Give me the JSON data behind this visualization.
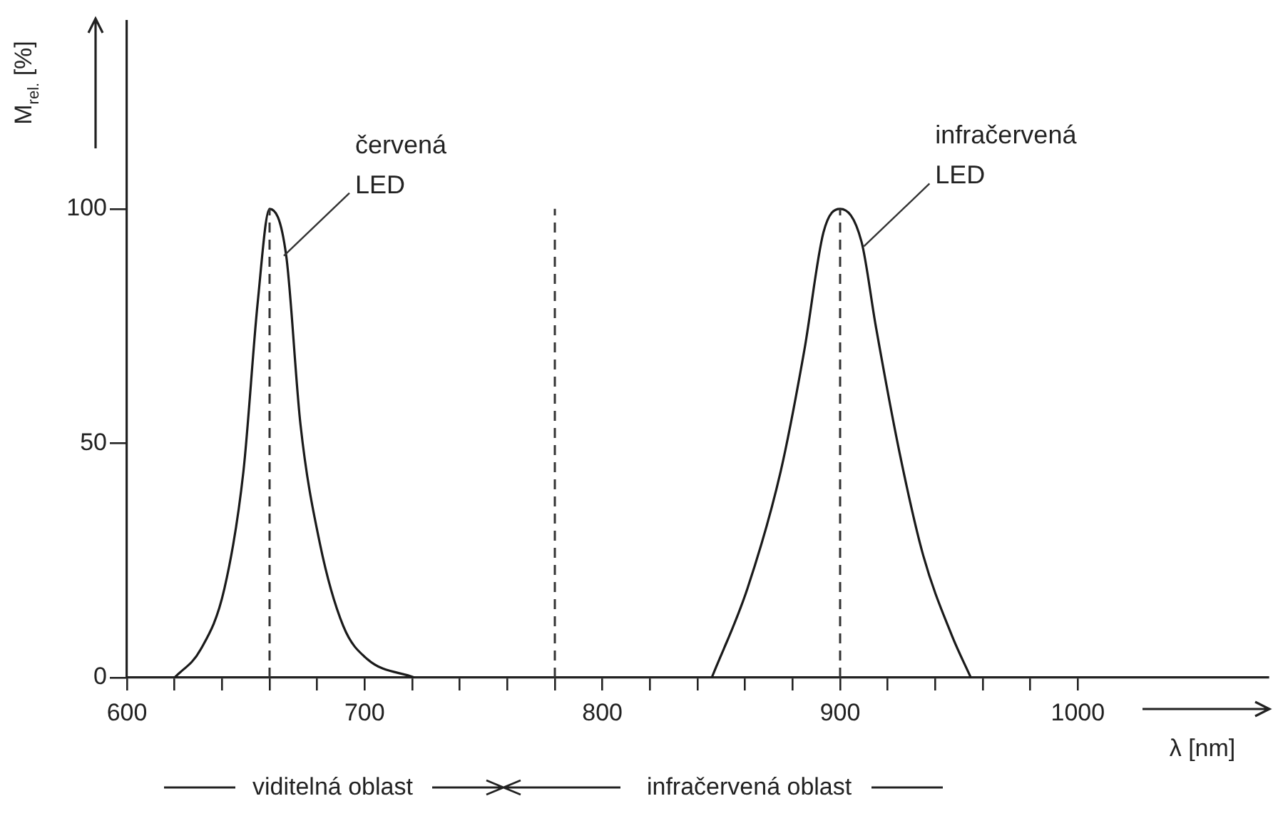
{
  "chart_data": {
    "type": "line",
    "ylabel": "M$_{rel.}$ [%]",
    "xlabel": "λ [nm]",
    "xlim": [
      600,
      1080
    ],
    "ylim": [
      0,
      140
    ],
    "xticks": [
      600,
      {
        "value": 620,
        "label": null
      },
      {
        "value": 640,
        "label": null
      },
      {
        "value": 660,
        "label": null
      },
      {
        "value": 680,
        "label": null
      },
      700,
      {
        "value": 720,
        "label": null
      },
      {
        "value": 740,
        "label": null
      },
      {
        "value": 760,
        "label": null
      },
      {
        "value": 780,
        "label": null
      },
      800,
      {
        "value": 820,
        "label": null
      },
      {
        "value": 840,
        "label": null
      },
      {
        "value": 860,
        "label": null
      },
      {
        "value": 880,
        "label": null
      },
      900,
      {
        "value": 920,
        "label": null
      },
      {
        "value": 940,
        "label": null
      },
      {
        "value": 960,
        "label": null
      },
      {
        "value": 980,
        "label": null
      },
      1000
    ],
    "yticks": [
      0,
      50,
      100
    ],
    "series": [
      {
        "color": "#1a1a1a",
        "x": [
          620,
          631,
          641,
          649,
          655,
          660,
          667,
          673,
          681,
          691,
          701,
          721
        ],
        "values": [
          0,
          6,
          19,
          44,
          80,
          100,
          90,
          54,
          29,
          11,
          4,
          0
        ]
      },
      {
        "color": "#1a1a1a",
        "x": [
          846,
          861,
          875,
          885,
          893,
          900,
          909,
          915,
          925,
          935,
          947,
          955
        ],
        "values": [
          0,
          19,
          44,
          70,
          95,
          100,
          93,
          75,
          48,
          26,
          9,
          0
        ]
      }
    ],
    "ref_lines": [
      {
        "axis": "x",
        "value": 660,
        "color": "#333333",
        "line_style": "dashed"
      },
      {
        "axis": "x",
        "value": 780,
        "color": "#333333",
        "line_style": "dashed"
      },
      {
        "axis": "x",
        "value": 900,
        "color": "#333333",
        "line_style": "dashed"
      }
    ],
    "annotations": [
      {
        "text": "červená LED",
        "x": 666,
        "y": 90
      },
      {
        "text": "infračervená LED",
        "x": 910,
        "y": 92
      },
      "viditelná oblast",
      "infračervená oblast"
    ],
    "grid": false,
    "legend": false,
    "marker": "none"
  }
}
